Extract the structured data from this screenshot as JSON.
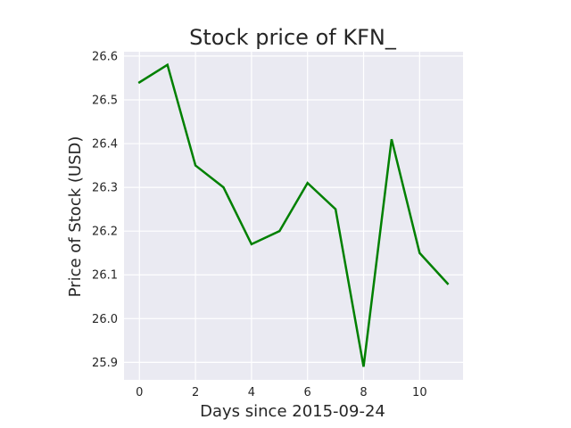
{
  "chart_data": {
    "type": "line",
    "title": "Stock price of KFN_",
    "xlabel": "Days since 2015-09-24",
    "ylabel": "Price of Stock (USD)",
    "x": [
      0,
      1,
      2,
      3,
      4,
      5,
      6,
      7,
      8,
      9,
      10,
      11
    ],
    "series": [
      {
        "values": [
          26.54,
          26.58,
          26.35,
          26.3,
          26.17,
          26.2,
          26.31,
          26.25,
          25.89,
          26.41,
          26.15,
          26.08
        ],
        "color": "#008000"
      }
    ],
    "xlim": [
      -0.55,
      11.55
    ],
    "ylim": [
      25.86,
      26.61
    ],
    "xticks": [
      0,
      2,
      4,
      6,
      8,
      10
    ],
    "yticks": [
      25.9,
      26.0,
      26.1,
      26.2,
      26.3,
      26.4,
      26.5,
      26.6
    ],
    "xtick_labels": [
      "0",
      "2",
      "4",
      "6",
      "8",
      "10"
    ],
    "ytick_labels": [
      "25.9",
      "26.0",
      "26.1",
      "26.2",
      "26.3",
      "26.4",
      "26.5",
      "26.6"
    ],
    "grid": true,
    "background_color": "#eaeaf2",
    "grid_color": "#ffffff"
  }
}
